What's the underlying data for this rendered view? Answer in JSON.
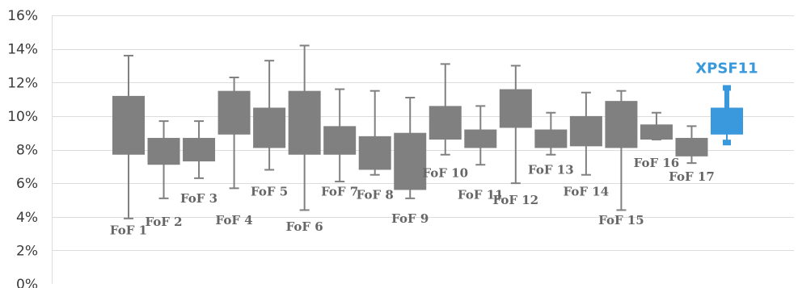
{
  "chart_data": {
    "type": "boxplot",
    "ylim": [
      0,
      16
    ],
    "y_ticks": [
      0,
      2,
      4,
      6,
      8,
      10,
      12,
      14,
      16
    ],
    "y_tick_labels": [
      "0%",
      "2%",
      "4%",
      "6%",
      "8%",
      "10%",
      "12%",
      "14%",
      "16%"
    ],
    "grid": true,
    "default_color": "#808080",
    "highlight_color": "#3a99dc",
    "series": [
      {
        "name": "FoF 1",
        "min": 3.9,
        "q1": 7.7,
        "q3": 11.2,
        "max": 13.6,
        "label_y": 3.2
      },
      {
        "name": "FoF 2",
        "min": 5.1,
        "q1": 7.1,
        "q3": 8.7,
        "max": 9.7,
        "label_y": 3.7
      },
      {
        "name": "FoF 3",
        "min": 6.3,
        "q1": 7.3,
        "q3": 8.7,
        "max": 9.7,
        "label_y": 5.1
      },
      {
        "name": "FoF 4",
        "min": 5.7,
        "q1": 8.9,
        "q3": 11.5,
        "max": 12.3,
        "label_y": 3.8
      },
      {
        "name": "FoF 5",
        "min": 6.8,
        "q1": 8.1,
        "q3": 10.5,
        "max": 13.3,
        "label_y": 5.5
      },
      {
        "name": "FoF 6",
        "min": 4.4,
        "q1": 7.7,
        "q3": 11.5,
        "max": 14.2,
        "label_y": 3.4
      },
      {
        "name": "FoF 7",
        "min": 6.1,
        "q1": 7.7,
        "q3": 9.4,
        "max": 11.6,
        "label_y": 5.5
      },
      {
        "name": "FoF 8",
        "min": 6.5,
        "q1": 6.8,
        "q3": 8.8,
        "max": 11.5,
        "label_y": 5.3
      },
      {
        "name": "FoF 9",
        "min": 5.1,
        "q1": 5.6,
        "q3": 9.0,
        "max": 11.1,
        "label_y": 3.9
      },
      {
        "name": "FoF 10",
        "min": 7.7,
        "q1": 8.6,
        "q3": 10.6,
        "max": 13.1,
        "label_y": 6.6
      },
      {
        "name": "FoF 11",
        "min": 7.1,
        "q1": 8.1,
        "q3": 9.2,
        "max": 10.6,
        "label_y": 5.3
      },
      {
        "name": "FoF 12",
        "min": 6.0,
        "q1": 9.3,
        "q3": 11.6,
        "max": 13.0,
        "label_y": 5.0
      },
      {
        "name": "FoF 13",
        "min": 7.7,
        "q1": 8.1,
        "q3": 9.2,
        "max": 10.2,
        "label_y": 6.8
      },
      {
        "name": "FoF 14",
        "min": 6.5,
        "q1": 8.2,
        "q3": 10.0,
        "max": 11.4,
        "label_y": 5.5
      },
      {
        "name": "FoF 15",
        "min": 4.4,
        "q1": 8.1,
        "q3": 10.9,
        "max": 11.5,
        "label_y": 3.8
      },
      {
        "name": "FoF 16",
        "min": 8.6,
        "q1": 8.6,
        "q3": 9.5,
        "max": 10.2,
        "label_y": 7.2
      },
      {
        "name": "FoF 17",
        "min": 7.2,
        "q1": 7.6,
        "q3": 8.7,
        "max": 9.4,
        "label_y": 6.4
      },
      {
        "name": "XPSF11",
        "min": 8.4,
        "q1": 8.9,
        "q3": 10.5,
        "max": 11.7,
        "label_y": 12.8,
        "highlight": true
      }
    ]
  }
}
